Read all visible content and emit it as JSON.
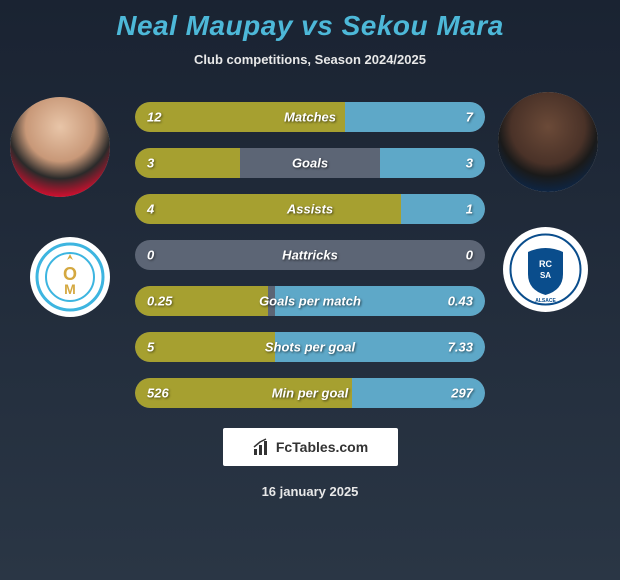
{
  "header": {
    "title": "Neal Maupay vs Sekou Mara",
    "subtitle": "Club competitions, Season 2024/2025"
  },
  "players": {
    "left": {
      "name": "Neal Maupay",
      "club": "Marseille"
    },
    "right": {
      "name": "Sekou Mara",
      "club": "Strasbourg"
    }
  },
  "colors": {
    "bar_left": "#a6a030",
    "bar_right": "#5ea8c8",
    "bar_bg": "#5c6575",
    "accent": "#4db8d8"
  },
  "stats": [
    {
      "label": "Matches",
      "left_val": "12",
      "right_val": "7",
      "left_pct": 60,
      "right_pct": 40
    },
    {
      "label": "Goals",
      "left_val": "3",
      "right_val": "3",
      "left_pct": 30,
      "right_pct": 30
    },
    {
      "label": "Assists",
      "left_val": "4",
      "right_val": "1",
      "left_pct": 76,
      "right_pct": 24
    },
    {
      "label": "Hattricks",
      "left_val": "0",
      "right_val": "0",
      "left_pct": 0,
      "right_pct": 0
    },
    {
      "label": "Goals per match",
      "left_val": "0.25",
      "right_val": "0.43",
      "left_pct": 38,
      "right_pct": 60
    },
    {
      "label": "Shots per goal",
      "left_val": "5",
      "right_val": "7.33",
      "left_pct": 40,
      "right_pct": 60
    },
    {
      "label": "Min per goal",
      "left_val": "526",
      "right_val": "297",
      "left_pct": 62,
      "right_pct": 38
    }
  ],
  "footer": {
    "site": "FcTables.com",
    "date": "16 january 2025"
  }
}
